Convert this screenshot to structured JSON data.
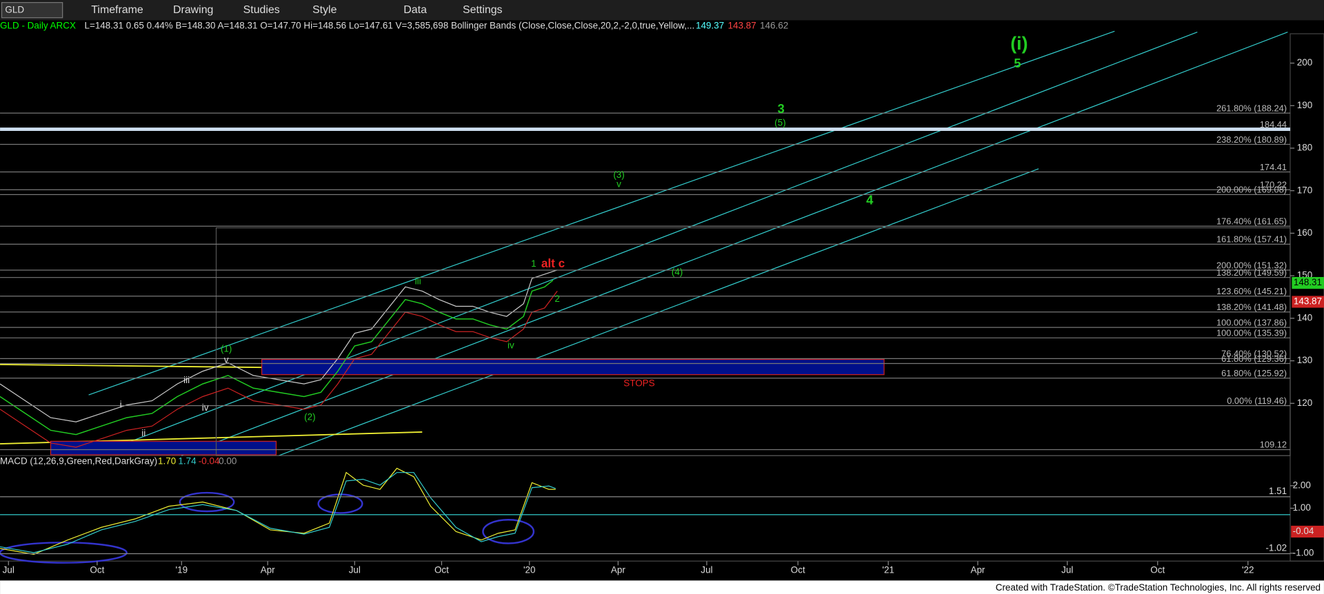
{
  "toolbar": {
    "symbol": "GLD",
    "items": [
      "Timeframe",
      "Drawing",
      "Studies",
      "Style",
      "Data",
      "Settings"
    ]
  },
  "header": {
    "title": "GLD - Daily  ARCX",
    "quote": "L=148.31  0.65  0.44%  B=148.30  A=148.31  O=147.70  Hi=148.56  Lo=147.61  V=3,585,698  Bollinger Bands (Close,Close,Close,20,2,-2,0,true,Yellow,...",
    "band_upper": "149.37",
    "band_lower": "143.87",
    "band_mid": "146.62"
  },
  "price_axis": {
    "ylim": [
      108.3,
      206.9
    ],
    "ticks": [
      120,
      130,
      140,
      150,
      160,
      170,
      180,
      190,
      200
    ],
    "last_price": {
      "value": 148.31,
      "label": "148.31"
    },
    "lower_band": {
      "value": 143.87,
      "label": "143.87"
    }
  },
  "fib_levels": [
    {
      "value": 188.24,
      "label": "261.80% (188.24)"
    },
    {
      "value": 184.44,
      "label": "184.44"
    },
    {
      "value": 180.89,
      "label": "238.20% (180.89)"
    },
    {
      "value": 174.41,
      "label": "174.41"
    },
    {
      "value": 170.22,
      "label": "170.22"
    },
    {
      "value": 169.08,
      "label": "200.00% (169.08)"
    },
    {
      "value": 161.65,
      "label": "176.40% (161.65)"
    },
    {
      "value": 157.41,
      "label": "161.80% (157.41)"
    },
    {
      "value": 151.32,
      "label": "200.00% (151.32)"
    },
    {
      "value": 149.59,
      "label": "138.20% (149.59)"
    },
    {
      "value": 145.21,
      "label": "123.60% (145.21)"
    },
    {
      "value": 141.48,
      "label": "138.20% (141.48)"
    },
    {
      "value": 137.86,
      "label": "100.00% (137.86)"
    },
    {
      "value": 135.39,
      "label": "100.00% (135.39)"
    },
    {
      "value": 130.52,
      "label": "76.40% (130.52)"
    },
    {
      "value": 129.36,
      "label": "61.80% (129.36)"
    },
    {
      "value": 125.92,
      "label": "61.80% (125.92)"
    },
    {
      "value": 119.46,
      "label": "0.00% (119.46)"
    },
    {
      "value": 109.12,
      "label": "109.12"
    }
  ],
  "wave_labels": [
    "(i)",
    "5",
    "3",
    "(5)",
    "(3)",
    "v",
    "4",
    "(4)",
    "1",
    "alt c",
    "2",
    "iii",
    "iv",
    "(1)",
    "v",
    "iii",
    "i",
    "iv",
    "ii",
    "(2)",
    "STOPS"
  ],
  "macd": {
    "title": "MACD (12,26,9,Green,Red,DarkGray)",
    "values": [
      "1.70",
      "1.74",
      "-0.04",
      "0.00"
    ],
    "ylim": [
      -1.35,
      3.15
    ],
    "ticks": [
      {
        "value": 2,
        "label": "2.00"
      },
      {
        "value": 1,
        "label": "1.00"
      },
      {
        "value": -1,
        "label": "-1.00"
      }
    ],
    "markers": [
      {
        "value": 1.51,
        "label": "1.51"
      },
      {
        "value": -0.04,
        "label": "-0.04"
      },
      {
        "value": -1.02,
        "label": "-1.02"
      }
    ]
  },
  "time_axis": [
    "Jul",
    "Oct",
    "'19",
    "Apr",
    "Jul",
    "Oct",
    "'20",
    "Apr",
    "Jul",
    "Oct",
    "'21",
    "Apr",
    "Jul",
    "Oct",
    "'22"
  ],
  "footer": "Created with TradeStation. ©TradeStation Technologies, Inc. All rights reserved"
}
